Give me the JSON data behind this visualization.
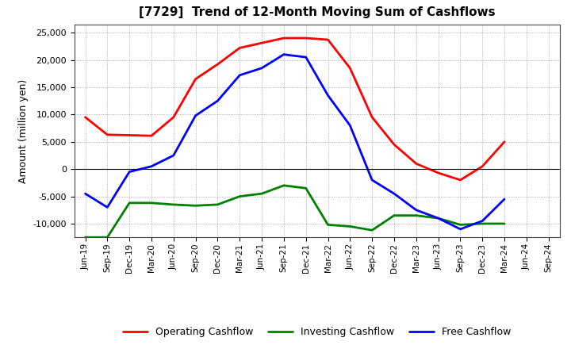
{
  "title": "[7729]  Trend of 12-Month Moving Sum of Cashflows",
  "ylabel": "Amount (million yen)",
  "ylim": [
    -12500,
    26500
  ],
  "yticks": [
    -10000,
    -5000,
    0,
    5000,
    10000,
    15000,
    20000,
    25000
  ],
  "background_color": "#ffffff",
  "plot_background": "#ffffff",
  "grid_color": "#999999",
  "x_dates": [
    "Jun-19",
    "Sep-19",
    "Dec-19",
    "Mar-20",
    "Jun-20",
    "Sep-20",
    "Dec-20",
    "Mar-21",
    "Jun-21",
    "Sep-21",
    "Dec-21",
    "Mar-22",
    "Jun-22",
    "Sep-22",
    "Dec-22",
    "Mar-23",
    "Jun-23",
    "Sep-23",
    "Dec-23",
    "Mar-24",
    "Jun-24",
    "Sep-24"
  ],
  "operating": [
    9500,
    6300,
    6200,
    6100,
    9500,
    16500,
    19200,
    22200,
    23100,
    24000,
    24000,
    23700,
    18500,
    9500,
    4500,
    1000,
    -700,
    -2000,
    500,
    5000,
    null,
    null
  ],
  "investing": [
    -12500,
    -12500,
    -6200,
    -6200,
    -6500,
    -6700,
    -6500,
    -5000,
    -4500,
    -3000,
    -3500,
    -10200,
    -10500,
    -11200,
    -8500,
    -8500,
    -9000,
    -10200,
    -10000,
    -10000,
    null,
    null
  ],
  "free": [
    -4500,
    -7000,
    -500,
    500,
    2500,
    9800,
    12500,
    17200,
    18500,
    21000,
    20500,
    13500,
    8000,
    -2000,
    -4500,
    -7500,
    -9000,
    -11000,
    -9500,
    -5500,
    null,
    null
  ],
  "line_colors": {
    "operating": "#ff0000",
    "investing": "#008000",
    "free": "#0000ff"
  },
  "line_width": 2.0,
  "title_fontsize": 11,
  "ylabel_fontsize": 9,
  "tick_fontsize": 8,
  "xtick_fontsize": 7.5,
  "legend_fontsize": 9,
  "legend_labels": [
    "Operating Cashflow",
    "Investing Cashflow",
    "Free Cashflow"
  ]
}
